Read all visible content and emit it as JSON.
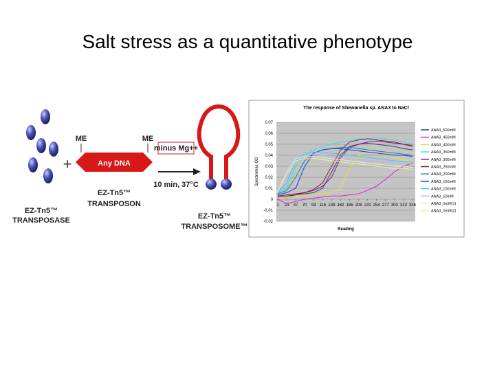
{
  "title": "Salt stress as a quantitative phenotype",
  "diagram": {
    "plus": "+",
    "me_left": "ME",
    "me_right": "ME",
    "dna": "Any DNA",
    "condition": "minus Mg++",
    "time": "10 min, 37°C",
    "transposase": [
      "EZ-Tn5™",
      "TRANSPOSASE"
    ],
    "transposon": [
      "EZ-Tn5™",
      "TRANSPOSON"
    ],
    "transposome": [
      "EZ-Tn5™",
      "TRANSPOSOME™"
    ]
  },
  "chart_data": {
    "type": "line",
    "title": "The response of Shewanella sp. ANA3 to NaCl",
    "x_label": "Reading",
    "y_label": "Spectramax OD",
    "x": [
      1,
      24,
      47,
      70,
      93,
      116,
      139,
      162,
      185,
      208,
      231,
      254,
      277,
      300,
      323,
      346
    ],
    "xlim": [
      1,
      346
    ],
    "xticks": [
      1,
      24,
      47,
      70,
      93,
      116,
      139,
      162,
      185,
      208,
      231,
      254,
      277,
      300,
      323,
      346
    ],
    "ylim": [
      -0.02,
      0.07
    ],
    "yticks": [
      -0.02,
      -0.01,
      0,
      0.01,
      0.02,
      0.03,
      0.04,
      0.05,
      0.06,
      0.07
    ],
    "grid": true,
    "series": [
      {
        "name": "ANA3_500mM",
        "color": "#2f3f7f",
        "values": [
          0.003,
          0.002,
          0.004,
          0.005,
          0.006,
          0.01,
          0.025,
          0.04,
          0.048,
          0.05,
          0.051,
          0.05,
          0.049,
          0.048,
          0.046,
          0.045
        ]
      },
      {
        "name": "ANA3_450mM",
        "color": "#e020c8",
        "values": [
          0.0,
          -0.004,
          -0.002,
          0.0,
          0.001,
          0.002,
          0.003,
          0.003,
          0.004,
          0.005,
          0.008,
          0.012,
          0.018,
          0.025,
          0.03,
          0.033
        ]
      },
      {
        "name": "ANA3_400mM",
        "color": "#e8e030",
        "values": [
          0.003,
          0.002,
          0.003,
          0.004,
          0.005,
          0.005,
          0.006,
          0.01,
          0.028,
          0.04,
          0.043,
          0.042,
          0.04,
          0.038,
          0.036,
          0.034
        ]
      },
      {
        "name": "ANA3_350mM",
        "color": "#30e0f0",
        "values": [
          0.006,
          0.01,
          0.03,
          0.04,
          0.045,
          0.048,
          0.05,
          0.052,
          0.053,
          0.055,
          0.055,
          0.056,
          0.055,
          0.054,
          0.052,
          0.05
        ]
      },
      {
        "name": "ANA3_300mM",
        "color": "#7a1a8a",
        "values": [
          0.003,
          0.004,
          0.005,
          0.006,
          0.008,
          0.012,
          0.02,
          0.038,
          0.047,
          0.05,
          0.052,
          0.053,
          0.052,
          0.051,
          0.05,
          0.049
        ]
      },
      {
        "name": "ANA3_250mM",
        "color": "#8a1a2a",
        "values": [
          0.002,
          0.003,
          0.004,
          0.006,
          0.009,
          0.015,
          0.03,
          0.045,
          0.052,
          0.054,
          0.055,
          0.054,
          0.053,
          0.052,
          0.05,
          0.048
        ]
      },
      {
        "name": "ANA3_200mM",
        "color": "#1a8a8a",
        "values": [
          0.005,
          0.008,
          0.02,
          0.035,
          0.042,
          0.045,
          0.046,
          0.047,
          0.047,
          0.046,
          0.045,
          0.044,
          0.043,
          0.042,
          0.041,
          0.04
        ]
      },
      {
        "name": "ANA3_150mM",
        "color": "#1a3ae0",
        "values": [
          0.004,
          0.006,
          0.01,
          0.03,
          0.042,
          0.045,
          0.046,
          0.046,
          0.045,
          0.044,
          0.043,
          0.042,
          0.041,
          0.04,
          0.04,
          0.039
        ]
      },
      {
        "name": "ANA3_100mM",
        "color": "#40c8f0",
        "values": [
          0.006,
          0.015,
          0.035,
          0.042,
          0.043,
          0.043,
          0.042,
          0.041,
          0.04,
          0.039,
          0.038,
          0.037,
          0.036,
          0.035,
          0.034,
          0.034
        ]
      },
      {
        "name": "ANA3_50mM",
        "color": "#c0b0f0",
        "values": [
          0.006,
          0.02,
          0.038,
          0.04,
          0.041,
          0.04,
          0.039,
          0.038,
          0.037,
          0.036,
          0.035,
          0.035,
          0.034,
          0.033,
          0.033,
          0.032
        ]
      },
      {
        "name": "ANA3_0mM(1)",
        "color": "#d8f0d0",
        "values": [
          0.007,
          0.025,
          0.037,
          0.039,
          0.039,
          0.038,
          0.037,
          0.036,
          0.035,
          0.034,
          0.033,
          0.032,
          0.031,
          0.03,
          0.03,
          0.029
        ]
      },
      {
        "name": "ANA3_0mM(2)",
        "color": "#f0f0a0",
        "values": [
          0.007,
          0.022,
          0.035,
          0.037,
          0.037,
          0.036,
          0.035,
          0.034,
          0.033,
          0.032,
          0.031,
          0.03,
          0.029,
          0.028,
          0.028,
          0.027
        ]
      }
    ]
  }
}
